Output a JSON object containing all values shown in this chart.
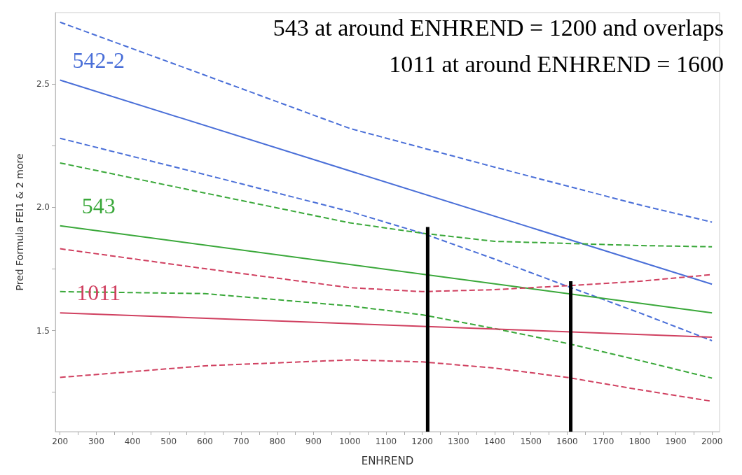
{
  "chart_data": {
    "type": "line",
    "xlabel": "ENHREND",
    "ylabel": "Pred Formula FEI1 & 2 more",
    "annotations": [
      "543 at around ENHREND = 1200 and overlaps",
      "1011 at around ENHREND = 1600"
    ],
    "xlim": [
      187,
      2021
    ],
    "ylim": [
      1.09,
      2.79
    ],
    "xticks": [
      200,
      {
        "value": 250,
        "label": null
      },
      300,
      {
        "value": 350,
        "label": null
      },
      400,
      {
        "value": 450,
        "label": null
      },
      500,
      {
        "value": 550,
        "label": null
      },
      600,
      {
        "value": 650,
        "label": null
      },
      700,
      {
        "value": 750,
        "label": null
      },
      800,
      {
        "value": 850,
        "label": null
      },
      900,
      {
        "value": 950,
        "label": null
      },
      1000,
      {
        "value": 1050,
        "label": null
      },
      1100,
      {
        "value": 1150,
        "label": null
      },
      1200,
      {
        "value": 1250,
        "label": null
      },
      1300,
      {
        "value": 1350,
        "label": null
      },
      1400,
      {
        "value": 1450,
        "label": null
      },
      1500,
      {
        "value": 1550,
        "label": null
      },
      1600,
      {
        "value": 1650,
        "label": null
      },
      1700,
      {
        "value": 1750,
        "label": null
      },
      1800,
      {
        "value": 1850,
        "label": null
      },
      1900,
      {
        "value": 1950,
        "label": null
      },
      2000
    ],
    "yticks": [
      {
        "value": 1.25,
        "label": null
      },
      1.5,
      {
        "value": 1.75,
        "label": null
      },
      {
        "value": 2,
        "label": "2.0"
      },
      {
        "value": 2.25,
        "label": null
      },
      2.5
    ],
    "marker": "none",
    "grid": false,
    "series": [
      {
        "name": "542-2",
        "color": "#4a6fd8",
        "line_style": "solid",
        "x": [
          200,
          2000
        ],
        "values": [
          2.516,
          1.688
        ]
      },
      {
        "color": "#4a6fd8",
        "line_style": "dashed",
        "x": [
          200,
          600,
          1000,
          1400,
          1800,
          2000
        ],
        "values": [
          2.751,
          2.536,
          2.32,
          2.163,
          2.01,
          1.94
        ]
      },
      {
        "color": "#4a6fd8",
        "line_style": "dashed",
        "x": [
          200,
          600,
          1000,
          1200,
          1400,
          1600,
          1800,
          2000
        ],
        "values": [
          2.28,
          2.133,
          1.983,
          1.895,
          1.79,
          1.68,
          1.572,
          1.459
        ]
      },
      {
        "name": "543",
        "color": "#3aa83a",
        "line_style": "solid",
        "x": [
          200,
          2000
        ],
        "values": [
          1.925,
          1.572
        ]
      },
      {
        "color": "#3aa83a",
        "line_style": "dashed",
        "x": [
          200,
          600,
          1000,
          1200,
          1400,
          1800,
          2000
        ],
        "values": [
          2.18,
          2.058,
          1.937,
          1.895,
          1.862,
          1.845,
          1.84
        ]
      },
      {
        "color": "#3aa83a",
        "line_style": "dashed",
        "x": [
          200,
          600,
          1000,
          1200,
          1400,
          1600,
          1800,
          2000
        ],
        "values": [
          1.658,
          1.65,
          1.6,
          1.564,
          1.508,
          1.448,
          1.379,
          1.307
        ]
      },
      {
        "name": "1011",
        "color": "#d04060",
        "line_style": "solid",
        "x": [
          200,
          2000
        ],
        "values": [
          1.572,
          1.473
        ]
      },
      {
        "color": "#d04060",
        "line_style": "dashed",
        "x": [
          200,
          600,
          1000,
          1200,
          1400,
          1600,
          1800,
          2000
        ],
        "values": [
          1.832,
          1.751,
          1.674,
          1.658,
          1.666,
          1.682,
          1.7,
          1.727
        ]
      },
      {
        "color": "#d04060",
        "line_style": "dashed",
        "x": [
          200,
          600,
          1000,
          1200,
          1400,
          1600,
          1800,
          2000
        ],
        "values": [
          1.31,
          1.357,
          1.381,
          1.373,
          1.348,
          1.31,
          1.26,
          1.213
        ]
      },
      {
        "color": "#000000",
        "line_style": "solid",
        "x": [
          1215,
          1215
        ],
        "values": [
          1.09,
          1.92
        ]
      },
      {
        "color": "#000000",
        "line_style": "solid",
        "x": [
          1610,
          1610
        ],
        "values": [
          1.09,
          1.7
        ]
      }
    ]
  }
}
